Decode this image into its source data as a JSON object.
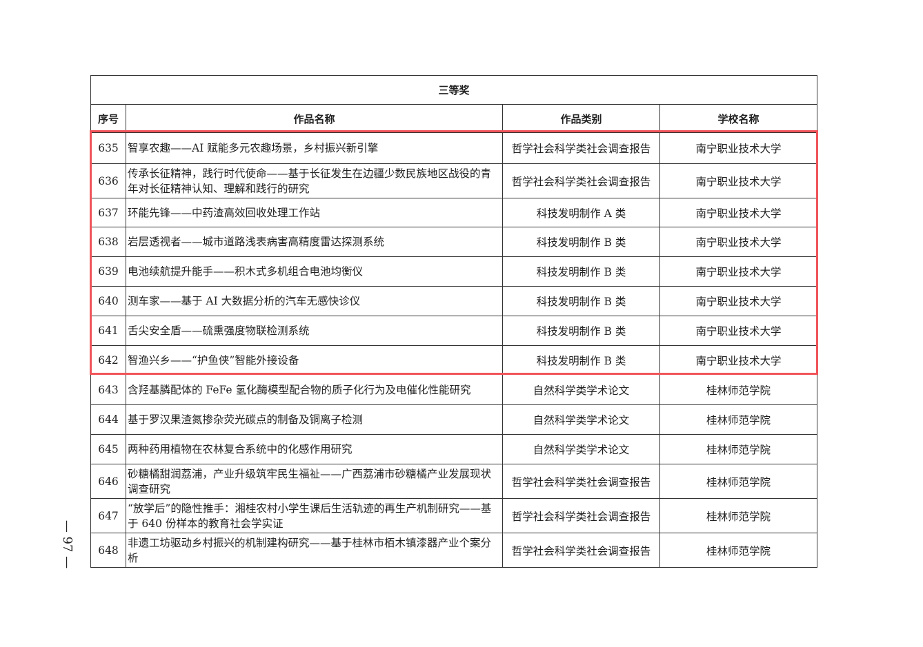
{
  "title": "三等奖",
  "headers": {
    "no": "序号",
    "name": "作品名称",
    "category": "作品类别",
    "school": "学校名称"
  },
  "rows": [
    {
      "no": "635",
      "name": "智享农趣——AI 赋能多元农趣场景，乡村振兴新引擎",
      "category": "哲学社会科学类社会调查报告",
      "school": "南宁职业技术大学"
    },
    {
      "no": "636",
      "name": "传承长征精神，践行时代使命——基于长征发生在边疆少数民族地区战役的青年对长征精神认知、理解和践行的研究",
      "category": "哲学社会科学类社会调查报告",
      "school": "南宁职业技术大学"
    },
    {
      "no": "637",
      "name": "环能先锋——中药渣高效回收处理工作站",
      "category": "科技发明制作 A 类",
      "school": "南宁职业技术大学"
    },
    {
      "no": "638",
      "name": "岩层透视者——城市道路浅表病害高精度雷达探测系统",
      "category": "科技发明制作 B 类",
      "school": "南宁职业技术大学"
    },
    {
      "no": "639",
      "name": "电池续航提升能手——积木式多机组合电池均衡仪",
      "category": "科技发明制作 B 类",
      "school": "南宁职业技术大学"
    },
    {
      "no": "640",
      "name": "测车家——基于 AI 大数据分析的汽车无感快诊仪",
      "category": "科技发明制作 B 类",
      "school": "南宁职业技术大学"
    },
    {
      "no": "641",
      "name": "舌尖安全盾——硫熏强度物联检测系统",
      "category": "科技发明制作 B 类",
      "school": "南宁职业技术大学"
    },
    {
      "no": "642",
      "name": "智渔兴乡——“护鱼侠”智能外接设备",
      "category": "科技发明制作 B 类",
      "school": "南宁职业技术大学"
    },
    {
      "no": "643",
      "name": "含羟基膦配体的 FeFe 氢化酶模型配合物的质子化行为及电催化性能研究",
      "category": "自然科学类学术论文",
      "school": "桂林师范学院"
    },
    {
      "no": "644",
      "name": "基于罗汉果渣氮掺杂荧光碳点的制备及铜离子检测",
      "category": "自然科学类学术论文",
      "school": "桂林师范学院"
    },
    {
      "no": "645",
      "name": "两种药用植物在农林复合系统中的化感作用研究",
      "category": "自然科学类学术论文",
      "school": "桂林师范学院"
    },
    {
      "no": "646",
      "name": "砂糖橘甜润荔浦，产业升级筑牢民生福祉——广西荔浦市砂糖橘产业发展现状调查研究",
      "category": "哲学社会科学类社会调查报告",
      "school": "桂林师范学院"
    },
    {
      "no": "647",
      "name": "“放学后”的隐性推手：湘桂农村小学生课后生活轨迹的再生产机制研究——基于 640 份样本的教育社会学实证",
      "category": "哲学社会科学类社会调查报告",
      "school": "桂林师范学院"
    },
    {
      "no": "648",
      "name": "非遗工坊驱动乡村振兴的机制建构研究——基于桂林市栢木镇漆器产业个案分析",
      "category": "哲学社会科学类社会调查报告",
      "school": "桂林师范学院"
    }
  ],
  "highlight_color": "#f0545a",
  "page_number": "— 97 —"
}
